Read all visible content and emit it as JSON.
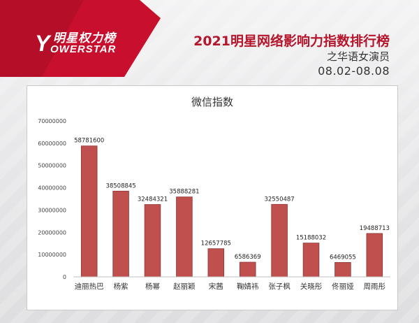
{
  "logo": {
    "brand_cn": "明星权力榜",
    "brand_en": "OWERSTAR",
    "brand_mark": "Y"
  },
  "header": {
    "title": "2021明星网络影响力指数排行榜",
    "subtitle": "之华语女演员",
    "date_range": "08.02-08.08"
  },
  "colors": {
    "bar": "#c0504d",
    "bar_stroke": "#8e3532",
    "title_red": "#b5162c",
    "logo_red": "#c8102e"
  },
  "chart_data": {
    "type": "bar",
    "title": "微信指数",
    "xlabel": "",
    "ylabel": "",
    "categories": [
      "迪丽热巴",
      "杨紫",
      "杨幂",
      "赵丽颖",
      "宋茜",
      "鞠婧祎",
      "张子枫",
      "关晓彤",
      "佟丽娅",
      "周雨彤"
    ],
    "values": [
      58781600,
      38508845,
      32484321,
      35888281,
      12657785,
      6586369,
      32550487,
      15188032,
      6469055,
      19488713
    ],
    "ylim": [
      0,
      70000000
    ],
    "yticks": [
      0,
      10000000,
      20000000,
      30000000,
      40000000,
      50000000,
      60000000,
      70000000
    ],
    "grid": false,
    "legend": "none",
    "data_labels": true
  }
}
